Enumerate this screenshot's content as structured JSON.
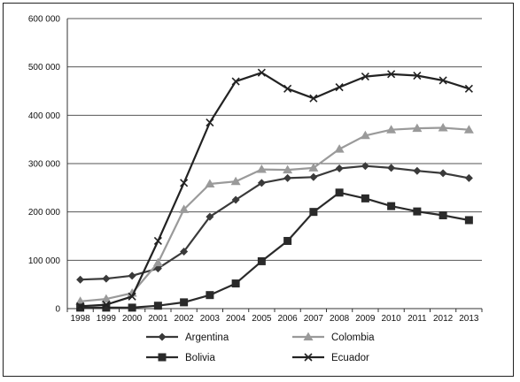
{
  "chart_data": {
    "type": "line",
    "title": "",
    "xlabel": "",
    "ylabel": "",
    "x": [
      1998,
      1999,
      2000,
      2001,
      2002,
      2003,
      2004,
      2005,
      2006,
      2007,
      2008,
      2009,
      2010,
      2011,
      2012,
      2013
    ],
    "ylim": [
      0,
      600000
    ],
    "yticks": [
      0,
      100000,
      200000,
      300000,
      400000,
      500000,
      600000
    ],
    "ytick_labels": [
      "0",
      "100 000",
      "200 000",
      "300 000",
      "400 000",
      "500 000",
      "600 000"
    ],
    "grid": "horizontal",
    "legend_position": "bottom",
    "series": [
      {
        "name": "Argentina",
        "marker": "diamond",
        "color": "#3a3a3a",
        "values": [
          60000,
          62000,
          68000,
          83000,
          118000,
          190000,
          225000,
          260000,
          270000,
          272000,
          290000,
          295000,
          291000,
          285000,
          280000,
          270000
        ]
      },
      {
        "name": "Colombia",
        "marker": "triangle",
        "color": "#9a9a9a",
        "values": [
          15000,
          20000,
          32000,
          95000,
          205000,
          258000,
          263000,
          288000,
          287000,
          291000,
          330000,
          358000,
          370000,
          373000,
          374000,
          370000
        ]
      },
      {
        "name": "Bolivia",
        "marker": "square",
        "color": "#2a2a2a",
        "values": [
          2000,
          2000,
          2000,
          6000,
          13000,
          28000,
          52000,
          98000,
          140000,
          200000,
          240000,
          228000,
          212000,
          201000,
          193000,
          183000
        ]
      },
      {
        "name": "Ecuador",
        "marker": "x",
        "color": "#222222",
        "values": [
          5000,
          8000,
          25000,
          140000,
          260000,
          385000,
          470000,
          488000,
          455000,
          435000,
          458000,
          480000,
          485000,
          482000,
          472000,
          455000
        ]
      }
    ],
    "legend_order": [
      "Argentina",
      "Colombia",
      "Bolivia",
      "Ecuador"
    ]
  }
}
